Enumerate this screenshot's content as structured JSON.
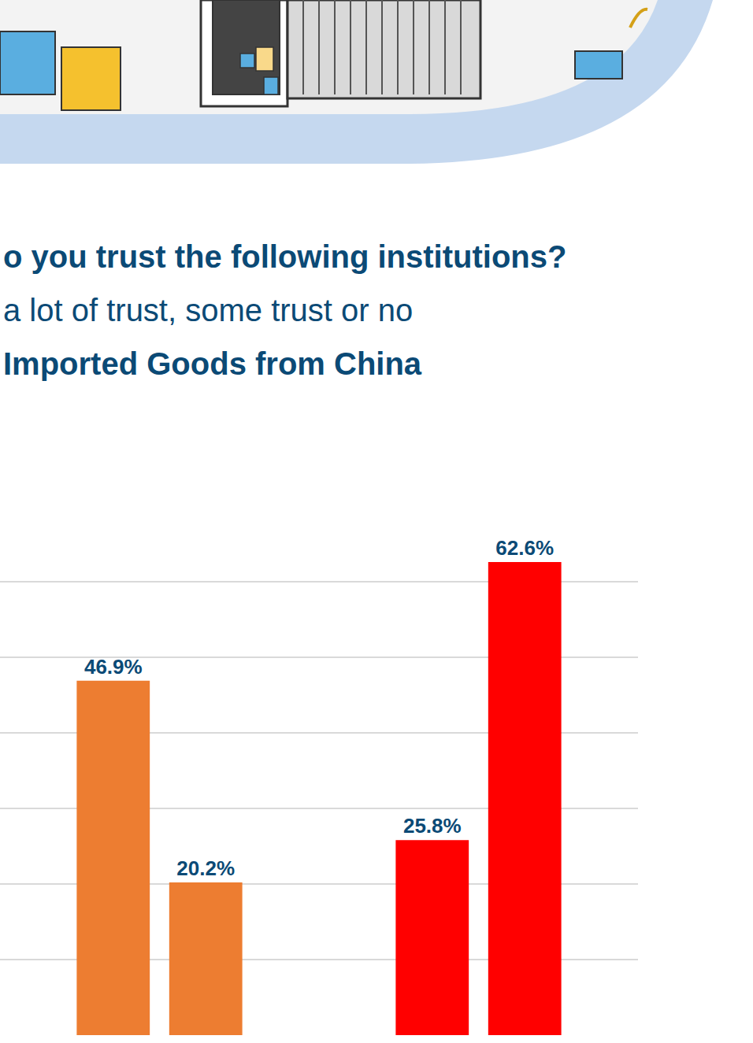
{
  "chart_data": {
    "type": "bar",
    "title": "o you trust the following institutions?",
    "subtitle": "a lot of trust, some trust or no",
    "annotations": [
      {
        "text": "Imported Goods from China"
      }
    ],
    "categories": [
      null,
      null
    ],
    "series": [
      {
        "colors": [
          "#ed7d31",
          "#ff0000"
        ],
        "values": [
          46.9,
          25.8
        ],
        "value_labels": [
          "46.9%",
          "25.8%"
        ]
      },
      {
        "colors": [
          "#ed7d31",
          "#ff0000"
        ],
        "values": [
          20.2,
          62.6
        ],
        "value_labels": [
          "20.2%",
          "62.6%"
        ]
      }
    ],
    "ylim": [
      0,
      70
    ],
    "yticks": [
      0,
      10,
      20,
      30,
      40,
      50,
      60,
      70
    ],
    "grid": true,
    "data_labels": true,
    "tick_labels": false
  }
}
